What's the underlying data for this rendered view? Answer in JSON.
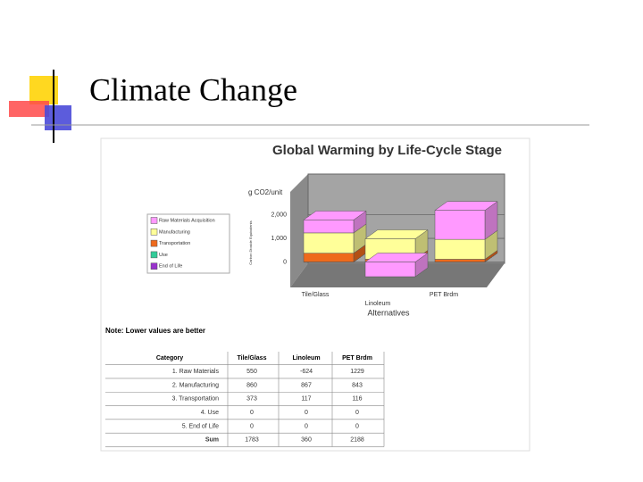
{
  "slide": {
    "title": "Climate Change"
  },
  "chart_data": {
    "type": "bar",
    "stacked": true,
    "title": "Global Warming by Life-Cycle Stage",
    "y_label": "g CO2/unit",
    "y_sublabel": "Carbon Dioxide Equivalents",
    "x_label": "Alternatives",
    "categories": [
      "Tile/Glass",
      "Linoleum",
      "PET Brdm"
    ],
    "series": [
      {
        "name": "Raw Materials Acquisition",
        "color": "#ff99ff",
        "values": [
          550,
          -624,
          1229
        ]
      },
      {
        "name": "Manufacturing",
        "color": "#ffff99",
        "values": [
          860,
          867,
          843
        ]
      },
      {
        "name": "Transportation",
        "color": "#ee6a1c",
        "values": [
          373,
          117,
          116
        ]
      },
      {
        "name": "Use",
        "color": "#33cc99",
        "values": [
          0,
          0,
          0
        ]
      },
      {
        "name": "End of Life",
        "color": "#9933cc",
        "values": [
          0,
          0,
          0
        ]
      }
    ],
    "ylim": [
      -700,
      3500
    ],
    "yticks": [
      0,
      {
        "value": 1000,
        "label": "1,000"
      },
      {
        "value": 2000,
        "label": "2,000"
      }
    ],
    "grid": true
  },
  "note": "Note: Lower values are better",
  "table": {
    "columns": [
      "Category",
      "Tile/Glass",
      "Linoleum",
      "PET Brdm"
    ],
    "rows": [
      [
        "1. Raw Materials",
        550,
        -624,
        1229
      ],
      [
        "2. Manufacturing",
        860,
        867,
        843
      ],
      [
        "3. Transportation",
        373,
        117,
        116
      ],
      [
        "4. Use",
        0,
        0,
        0
      ],
      [
        "5. End of Life",
        0,
        0,
        0
      ],
      [
        "Sum",
        1783,
        360,
        2188
      ]
    ]
  }
}
